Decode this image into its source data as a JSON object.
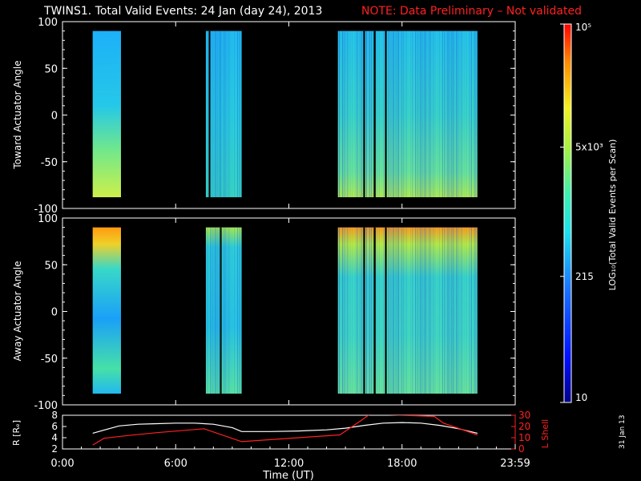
{
  "title": {
    "main": "TWINS1. Total Valid Events: 24 Jan (day  24), 2013",
    "note": "NOTE: Data Preliminary – Not validated"
  },
  "stamp": "31 Jan 13",
  "chart_data": [
    {
      "type": "heatmap",
      "ylabel": "Toward Actuator Angle",
      "ylim": [
        -100,
        100
      ],
      "yticks": [
        -100,
        -50,
        0,
        50,
        100
      ],
      "x_units": "hours UT",
      "coverage_intervals_hours": [
        [
          1.6,
          3.1
        ],
        [
          7.6,
          9.5
        ],
        [
          14.6,
          22.0
        ]
      ],
      "data_gaps_hours": [
        [
          7.75,
          7.82
        ],
        [
          15.95,
          16.02
        ],
        [
          16.5,
          16.6
        ],
        [
          17.1,
          17.15
        ]
      ]
    },
    {
      "type": "heatmap",
      "ylabel": "Away Actuator Angle",
      "ylim": [
        -100,
        100
      ],
      "yticks": [
        -100,
        -50,
        0,
        50,
        100
      ],
      "x_units": "hours UT",
      "coverage_intervals_hours": [
        [
          1.6,
          3.1
        ],
        [
          7.6,
          9.5
        ],
        [
          14.6,
          22.0
        ]
      ],
      "data_gaps_hours": [
        [
          8.35,
          8.42
        ],
        [
          15.95,
          16.02
        ],
        [
          16.5,
          16.6
        ],
        [
          17.1,
          17.15
        ]
      ]
    },
    {
      "type": "line",
      "title": "",
      "xlabel": "Time (UT)",
      "xticks": [
        "0:00",
        "6:00",
        "12:00",
        "18:00",
        "23:59"
      ],
      "ylabel_left": "R [Rₑ]",
      "ylabel_right": "L Shell",
      "ylim_left": [
        2,
        8
      ],
      "yticks_left": [
        2,
        4,
        6,
        8
      ],
      "ylim_right": [
        0,
        30
      ],
      "yticks_right": [
        0,
        10,
        20,
        30
      ],
      "series": [
        {
          "name": "R [Rₑ]",
          "color": "#ffffff",
          "axis": "left",
          "x": [
            1.6,
            3.0,
            4.0,
            5.0,
            6.0,
            7.0,
            8.0,
            9.0,
            9.5,
            11.0,
            12.5,
            14.0,
            15.0,
            16.0,
            17.0,
            18.0,
            19.0,
            20.0,
            21.0,
            22.0
          ],
          "y": [
            4.8,
            6.1,
            6.4,
            6.5,
            6.6,
            6.6,
            6.4,
            5.8,
            5.1,
            5.1,
            5.2,
            5.4,
            5.7,
            6.2,
            6.6,
            6.7,
            6.6,
            6.2,
            5.6,
            4.8
          ]
        },
        {
          "name": "L Shell",
          "color": "#ff2020",
          "axis": "right",
          "x": [
            1.6,
            2.2,
            3.5,
            5.0,
            7.5,
            9.5,
            12.5,
            14.7,
            15.8,
            16.3,
            19.7,
            20.2,
            22.0
          ],
          "y": [
            3.5,
            9.5,
            12.0,
            14.5,
            18.0,
            6.5,
            10.0,
            12.5,
            25.0,
            31.0,
            29.0,
            23.0,
            12.5
          ]
        }
      ]
    }
  ],
  "colorbar": {
    "label": "LOG₁₀(Total Valid Events per Scan)",
    "tick_labels": [
      "10",
      "215",
      "5x10³",
      "10⁵"
    ],
    "tick_values": [
      10,
      215,
      5000,
      100000
    ],
    "scale": "log"
  }
}
